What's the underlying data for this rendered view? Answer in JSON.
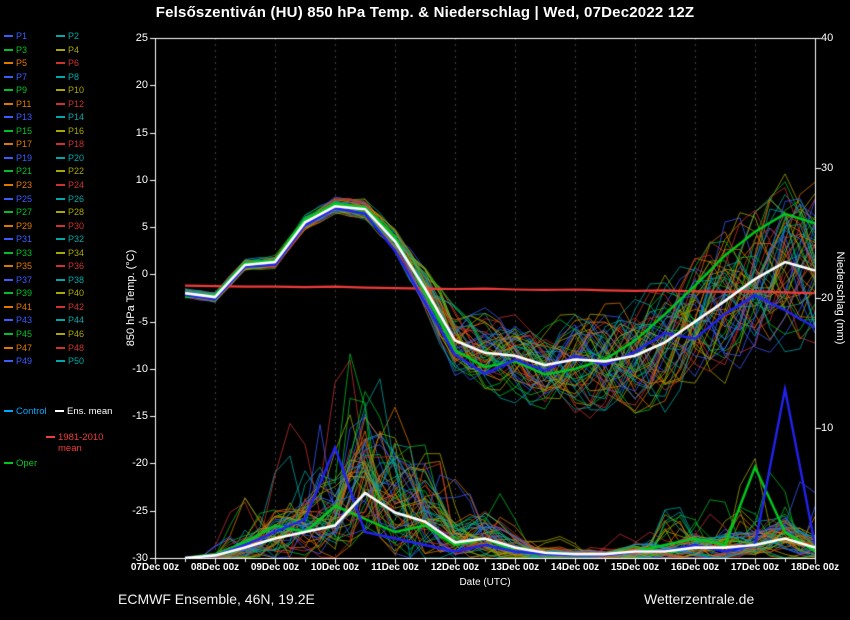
{
  "title": "Felsőszentiván  (HU)  850 hPa Temp. & Niederschlag | Wed, 07Dec2022 12Z",
  "footer": {
    "left": "ECMWF Ensemble, 46N, 19.2E",
    "right": "Wetterzentrale.de"
  },
  "axes": {
    "left_title": "850 hPa Temp. (°C)",
    "right_title": "Niederschlag (mm)",
    "x_title": "Date (UTC)",
    "left_ticks": [
      25,
      20,
      15,
      10,
      5,
      0,
      -5,
      -10,
      -15,
      -20,
      -25,
      -30
    ],
    "right_ticks": [
      40,
      30,
      20,
      10
    ],
    "x_ticks": [
      "07Dec 00z",
      "08Dec 00z",
      "09Dec 00z",
      "10Dec 00z",
      "11Dec 00z",
      "12Dec 00z",
      "13Dec 00z",
      "14Dec 00z",
      "15Dec 00z",
      "16Dec 00z",
      "17Dec 00z",
      "18Dec 00z"
    ],
    "temp_range": [
      -30,
      25
    ],
    "precip_range": [
      0,
      40
    ]
  },
  "legend": {
    "member_labels": [
      "P1",
      "P2",
      "P3",
      "P4",
      "P5",
      "P6",
      "P7",
      "P8",
      "P9",
      "P10",
      "P11",
      "P12",
      "P13",
      "P14",
      "P15",
      "P16",
      "P17",
      "P18",
      "P19",
      "P20",
      "P21",
      "P22",
      "P23",
      "P24",
      "P25",
      "P26",
      "P27",
      "P28",
      "P29",
      "P30",
      "P31",
      "P32",
      "P33",
      "P34",
      "P35",
      "P36",
      "P37",
      "P38",
      "P39",
      "P40",
      "P41",
      "P42",
      "P43",
      "P44",
      "P45",
      "P46",
      "P47",
      "P48",
      "P49",
      "P50"
    ],
    "member_colors_cycle": [
      "#3a5cff",
      "#00a8a8",
      "#00c028",
      "#a8a800",
      "#e07800",
      "#cc3232"
    ],
    "control_label": "Control",
    "control_label_color": "#00a8ff",
    "ens_mean_label": "Ens. mean",
    "ens_mean_color": "#ffffff",
    "climate_label_line1": "1981-2010",
    "climate_label_line2": "mean",
    "climate_color": "#f03c3c",
    "oper_label": "Oper",
    "oper_color": "#00c81e"
  },
  "chart_data": {
    "type": "line",
    "x_axis": "hours since 07Dec2022 00 UTC",
    "x_hours": [
      12,
      24,
      36,
      48,
      60,
      72,
      84,
      96,
      108,
      120,
      132,
      144,
      156,
      168,
      180,
      192,
      204,
      216,
      228,
      240,
      252,
      264
    ],
    "series": [
      {
        "name": "Ens. mean",
        "color": "#ffffff",
        "temp": [
          -2.0,
          -2.4,
          1.0,
          1.3,
          5.5,
          7.2,
          6.9,
          3.5,
          -1.5,
          -7.0,
          -8.3,
          -8.6,
          -9.6,
          -9.0,
          -9.2,
          -8.6,
          -7.2,
          -5.0,
          -2.8,
          -0.5,
          1.3,
          0.4
        ],
        "precip": [
          0,
          0.2,
          0.8,
          1.5,
          2.0,
          2.5,
          5.0,
          3.5,
          2.8,
          1.2,
          1.5,
          0.8,
          0.4,
          0.3,
          0.3,
          0.5,
          0.5,
          0.8,
          0.8,
          1.0,
          1.5,
          0.8
        ]
      },
      {
        "name": "Control",
        "color": "#2222ee",
        "temp": [
          -2.2,
          -2.6,
          0.8,
          1.0,
          5.2,
          7.0,
          6.4,
          2.5,
          -3.0,
          -8.5,
          -10.5,
          -9.0,
          -10.2,
          -8.6,
          -9.6,
          -8.2,
          -6.2,
          -6.8,
          -4.2,
          -2.2,
          -3.8,
          -5.6
        ],
        "precip": [
          0,
          0.2,
          1.0,
          2.0,
          3.0,
          8.5,
          2.0,
          1.5,
          1.0,
          0.5,
          1.0,
          0.5,
          0.3,
          0.2,
          0.2,
          0.5,
          0.5,
          1.0,
          0.5,
          1.0,
          13.0,
          1.0
        ]
      },
      {
        "name": "Oper",
        "color": "#00c81e",
        "temp": [
          -2.4,
          -2.2,
          1.2,
          1.5,
          5.8,
          7.5,
          7.1,
          4.0,
          -2.0,
          -8.0,
          -9.8,
          -9.2,
          -10.6,
          -10.0,
          -9.0,
          -7.0,
          -4.2,
          -1.2,
          2.0,
          4.5,
          6.4,
          5.4
        ],
        "precip": [
          0,
          0.3,
          1.2,
          2.5,
          2.0,
          4.0,
          3.0,
          2.0,
          2.5,
          1.0,
          1.5,
          0.5,
          0.3,
          0.2,
          0.3,
          0.5,
          1.0,
          1.5,
          1.0,
          7.0,
          2.0,
          0.5
        ]
      },
      {
        "name": "1981-2010 mean",
        "color": "#f03c3c",
        "temp": [
          -1.2,
          -1.25,
          -1.3,
          -1.3,
          -1.35,
          -1.3,
          -1.4,
          -1.45,
          -1.5,
          -1.55,
          -1.5,
          -1.6,
          -1.65,
          -1.6,
          -1.7,
          -1.75,
          -1.7,
          -1.8,
          -1.85,
          -1.8,
          -1.9,
          -2.0
        ]
      }
    ],
    "ensemble": {
      "count": 50,
      "temp_spread": [
        0.4,
        0.45,
        0.5,
        0.6,
        0.7,
        0.8,
        0.9,
        1.3,
        2.2,
        3.2,
        3.8,
        4.2,
        4.6,
        5.0,
        5.2,
        5.5,
        6.0,
        6.5,
        7.0,
        7.5,
        7.8,
        8.0
      ],
      "precip_spike_amp": [
        0,
        1,
        3,
        5,
        8,
        10,
        9,
        8,
        6,
        4,
        4,
        2,
        1,
        1,
        1,
        2,
        3,
        3,
        4,
        6,
        9,
        5
      ]
    }
  }
}
